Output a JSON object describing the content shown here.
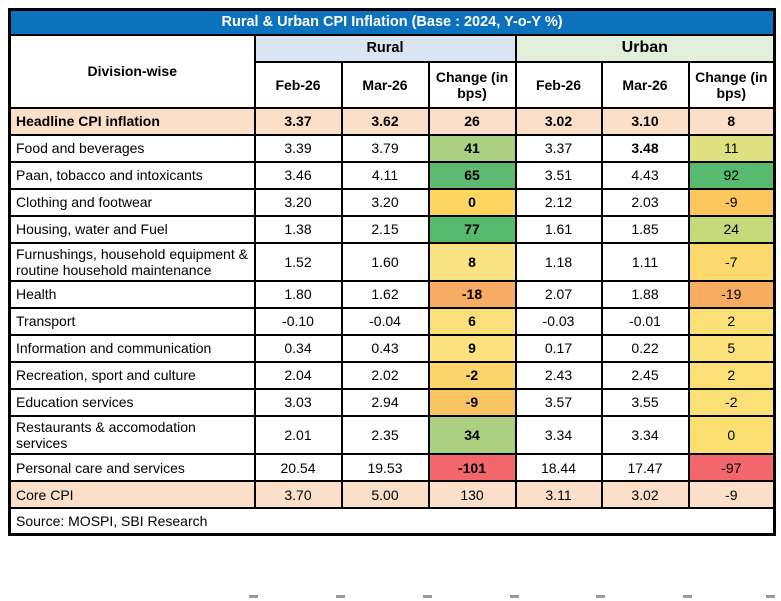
{
  "title": "Rural & Urban CPI Inflation  (Base : 2024, Y-o-Y %)",
  "header": {
    "division_label": "Division-wise",
    "rural_label": "Rural",
    "urban_label": "Urban",
    "sub_columns": [
      "Feb-26",
      "Mar-26",
      "Change (in bps)"
    ]
  },
  "colors": {
    "title_bg": "#0d72bd",
    "title_fg": "#ffffff",
    "rural_header_bg": "#dbe5f1",
    "urban_header_bg": "#e2efda",
    "band_row_bg": "#fbdfc8"
  },
  "rows": [
    {
      "label": "Headline CPI inflation",
      "band": true,
      "bold_row": true,
      "rural": {
        "feb": "3.37",
        "mar": "3.62",
        "change": "26",
        "change_bg": "",
        "change_bold": true
      },
      "urban": {
        "feb": "3.02",
        "mar": "3.10",
        "mar_bold": false,
        "change": "8",
        "change_bg": ""
      }
    },
    {
      "label": "Food and beverages",
      "band": false,
      "bold_row": false,
      "rural": {
        "feb": "3.39",
        "mar": "3.79",
        "change": "41",
        "change_bg": "#a9d17f",
        "change_bold": true
      },
      "urban": {
        "feb": "3.37",
        "mar": "3.48",
        "mar_bold": true,
        "change": "11",
        "change_bg": "#dfe181"
      }
    },
    {
      "label": "Paan, tobacco and intoxicants",
      "band": false,
      "bold_row": false,
      "rural": {
        "feb": "3.46",
        "mar": "4.11",
        "change": "65",
        "change_bg": "#5eba70",
        "change_bold": true
      },
      "urban": {
        "feb": "3.51",
        "mar": "4.43",
        "mar_bold": false,
        "change": "92",
        "change_bg": "#57ba6e"
      }
    },
    {
      "label": "Clothing and footwear",
      "band": false,
      "bold_row": false,
      "rural": {
        "feb": "3.20",
        "mar": "3.20",
        "change": "0",
        "change_bg": "#fcd65f",
        "change_bold": true
      },
      "urban": {
        "feb": "2.12",
        "mar": "2.03",
        "mar_bold": false,
        "change": "-9",
        "change_bg": "#fbc65c"
      }
    },
    {
      "label": "Housing, water and Fuel",
      "band": false,
      "bold_row": false,
      "rural": {
        "feb": "1.38",
        "mar": "2.15",
        "change": "77",
        "change_bg": "#55b96e",
        "change_bold": true
      },
      "urban": {
        "feb": "1.61",
        "mar": "1.85",
        "mar_bold": false,
        "change": "24",
        "change_bg": "#c6da7c"
      }
    },
    {
      "label": "Furnushings, household equipment & routine household maintenance",
      "band": false,
      "bold_row": false,
      "rural": {
        "feb": "1.52",
        "mar": "1.60",
        "change": "8",
        "change_bg": "#fbe282",
        "change_bold": true
      },
      "urban": {
        "feb": "1.18",
        "mar": "1.11",
        "mar_bold": false,
        "change": "-7",
        "change_bg": "#fcd96d"
      }
    },
    {
      "label": "Health",
      "band": false,
      "bold_row": false,
      "rural": {
        "feb": "1.80",
        "mar": "1.62",
        "change": "-18",
        "change_bg": "#f6ad63",
        "change_bold": true
      },
      "urban": {
        "feb": "2.07",
        "mar": "1.88",
        "mar_bold": false,
        "change": "-19",
        "change_bg": "#f6ad61"
      }
    },
    {
      "label": "Transport",
      "band": false,
      "bold_row": false,
      "rural": {
        "feb": "-0.10",
        "mar": "-0.04",
        "change": "6",
        "change_bg": "#fbe079",
        "change_bold": true
      },
      "urban": {
        "feb": "-0.03",
        "mar": "-0.01",
        "mar_bold": false,
        "change": "2",
        "change_bg": "#fbe077"
      }
    },
    {
      "label": "Information and communication",
      "band": false,
      "bold_row": false,
      "rural": {
        "feb": "0.34",
        "mar": "0.43",
        "change": "9",
        "change_bg": "#fce37f",
        "change_bold": true
      },
      "urban": {
        "feb": "0.17",
        "mar": "0.22",
        "mar_bold": false,
        "change": "5",
        "change_bg": "#fbe27b"
      }
    },
    {
      "label": "Recreation, sport and culture",
      "band": false,
      "bold_row": false,
      "rural": {
        "feb": "2.04",
        "mar": "2.02",
        "change": "-2",
        "change_bg": "#fbd46c",
        "change_bold": true
      },
      "urban": {
        "feb": "2.43",
        "mar": "2.45",
        "mar_bold": false,
        "change": "2",
        "change_bg": "#fbe077"
      }
    },
    {
      "label": "Education services",
      "band": false,
      "bold_row": false,
      "rural": {
        "feb": "3.03",
        "mar": "2.94",
        "change": "-9",
        "change_bg": "#f9c564",
        "change_bold": true
      },
      "urban": {
        "feb": "3.57",
        "mar": "3.55",
        "mar_bold": false,
        "change": "-2",
        "change_bg": "#fbe077"
      }
    },
    {
      "label": "Restaurants & accomodation services",
      "band": false,
      "bold_row": false,
      "rural": {
        "feb": "2.01",
        "mar": "2.35",
        "change": "34",
        "change_bg": "#abd07f",
        "change_bold": true
      },
      "urban": {
        "feb": "3.34",
        "mar": "3.34",
        "mar_bold": false,
        "change": "0",
        "change_bg": "#fbdf70"
      }
    },
    {
      "label": "Personal care and  services",
      "band": false,
      "bold_row": false,
      "rural": {
        "feb": "20.54",
        "mar": "19.53",
        "change": "-101",
        "change_bg": "#f2666c",
        "change_bold": true
      },
      "urban": {
        "feb": "18.44",
        "mar": "17.47",
        "mar_bold": false,
        "change": "-97",
        "change_bg": "#f2666c"
      }
    },
    {
      "label": "Core CPI",
      "band": true,
      "bold_row": false,
      "rural": {
        "feb": "3.70",
        "mar": "5.00",
        "change": "130",
        "change_bg": "",
        "change_bold": false
      },
      "urban": {
        "feb": "3.11",
        "mar": "3.02",
        "mar_bold": false,
        "change": "-9",
        "change_bg": ""
      }
    }
  ],
  "source": "Source: MOSPI, SBI Research"
}
